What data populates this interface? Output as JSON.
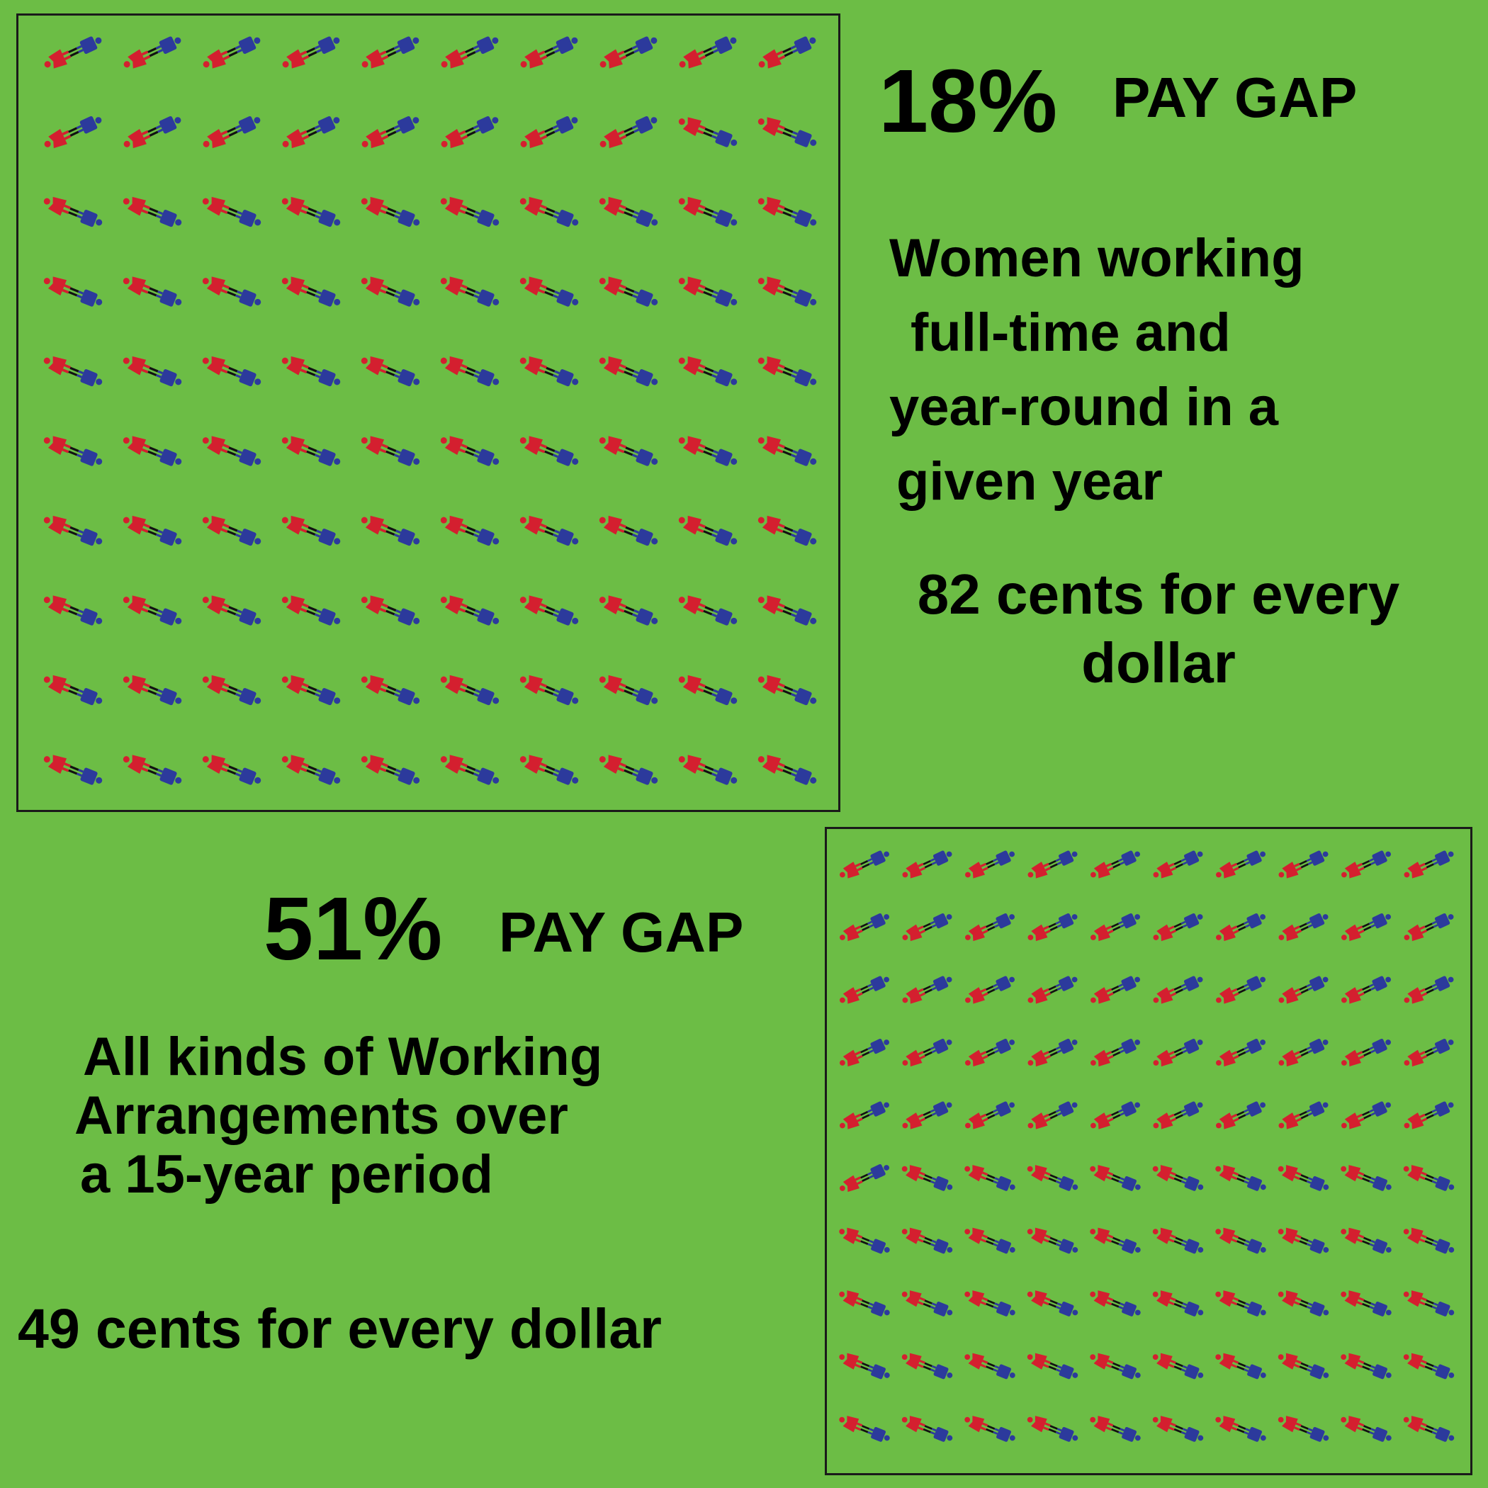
{
  "colors": {
    "background": "#6cbd45",
    "woman": "#d41f2f",
    "man": "#2c3a9c",
    "link": "#111111"
  },
  "section_one": {
    "gap_percent": "18%",
    "gap_label": "PAY GAP",
    "description_lines": [
      "Women  working",
      "full-time  and",
      "year-round  in  a",
      "given  year"
    ],
    "cents_lines": [
      "82 cents for every",
      "dollar"
    ],
    "pictogram": {
      "rows": 10,
      "columns": 10,
      "woman_up_count": 18,
      "icon_semantic": "woman-and-man-pair-icon"
    }
  },
  "section_two": {
    "gap_percent": "51%",
    "gap_label": "PAY GAP",
    "description_lines": [
      "All  kinds  of  Working",
      "Arrangements  over",
      "a 15-year  period"
    ],
    "cents_text": "49 cents for every dollar",
    "pictogram": {
      "rows": 10,
      "columns": 10,
      "woman_up_count": 51,
      "icon_semantic": "woman-and-man-pair-icon"
    }
  }
}
